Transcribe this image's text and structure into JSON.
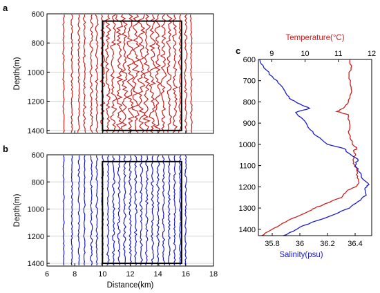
{
  "chart_data": [
    {
      "panel": "a",
      "type": "line",
      "xlabel": "",
      "ylabel": "Depth(m)",
      "xlim": [
        6,
        18
      ],
      "ylim": [
        600,
        1420
      ],
      "y_reversed": true,
      "yticks": [
        600,
        800,
        1000,
        1200,
        1400
      ],
      "xticks": [
        6,
        8,
        10,
        12,
        14,
        16,
        18
      ],
      "show_x_tick_labels": false,
      "grid": "horizontal",
      "trace_color": "#cc1f1f",
      "trace_offsets_km": [
        7.2,
        7.8,
        8.3,
        8.7,
        9.2,
        9.6,
        10.0,
        10.4,
        10.8,
        11.2,
        11.6,
        12.0,
        12.4,
        12.8,
        13.2,
        13.6,
        14.0,
        14.4,
        14.8,
        15.2,
        15.6,
        16.0,
        16.4
      ],
      "trace_amplitude_km": [
        0.05,
        0.06,
        0.07,
        0.08,
        0.09,
        0.1,
        0.14,
        0.17,
        0.19,
        0.2,
        0.21,
        0.22,
        0.22,
        0.22,
        0.21,
        0.2,
        0.19,
        0.18,
        0.16,
        0.14,
        0.1,
        0.08,
        0.06
      ],
      "highlight_box": {
        "x": [
          10.0,
          15.7
        ],
        "y": [
          650,
          1400
        ],
        "color": "#000000"
      }
    },
    {
      "panel": "b",
      "type": "line",
      "xlabel": "Distance(km)",
      "ylabel": "Depth(m)",
      "xlim": [
        6,
        18
      ],
      "ylim": [
        600,
        1420
      ],
      "y_reversed": true,
      "yticks": [
        600,
        800,
        1000,
        1200,
        1400
      ],
      "xticks": [
        6,
        8,
        10,
        12,
        14,
        16,
        18
      ],
      "show_x_tick_labels": true,
      "grid": "horizontal",
      "trace_color": "#1b1bcc",
      "trace_offsets_km": [
        7.2,
        7.8,
        8.3,
        8.7,
        9.2,
        9.6,
        10.0,
        10.4,
        10.8,
        11.2,
        11.6,
        12.0,
        12.4,
        12.8,
        13.2,
        13.6,
        14.0,
        14.4,
        14.8,
        15.2,
        15.6,
        16.0
      ],
      "trace_amplitude_km": [
        0.04,
        0.04,
        0.05,
        0.05,
        0.06,
        0.06,
        0.07,
        0.07,
        0.08,
        0.08,
        0.08,
        0.08,
        0.08,
        0.08,
        0.08,
        0.08,
        0.08,
        0.07,
        0.07,
        0.06,
        0.06,
        0.05
      ],
      "highlight_box": {
        "x": [
          10.0,
          15.7
        ],
        "y": [
          650,
          1400
        ],
        "color": "#000000"
      }
    },
    {
      "panel": "c",
      "type": "line",
      "ylabel": "",
      "ylim": [
        600,
        1430
      ],
      "y_reversed": true,
      "yticks": [
        600,
        700,
        800,
        900,
        1000,
        1100,
        1200,
        1300,
        1400
      ],
      "top_axis": {
        "label": "Temperature(°C)",
        "color": "#cc1f1f",
        "xlim": [
          8.6,
          12
        ],
        "xticks": [
          9,
          10,
          11,
          12
        ]
      },
      "bottom_axis": {
        "label": "Salinity(psu)",
        "color": "#1b1bcc",
        "xlim": [
          35.7,
          36.52
        ],
        "xticks": [
          35.8,
          36,
          36.2,
          36.4
        ]
      },
      "series": [
        {
          "axis": "top",
          "color": "#cc1f1f",
          "depth": [
            600,
            640,
            680,
            720,
            760,
            800,
            830,
            845,
            860,
            900,
            940,
            980,
            1000,
            1020,
            1030,
            1050,
            1080,
            1100,
            1120,
            1150,
            1180,
            1200,
            1220,
            1250,
            1280,
            1300,
            1320,
            1350,
            1380,
            1410,
            1430
          ],
          "values": [
            11.35,
            11.38,
            11.32,
            11.36,
            11.38,
            11.3,
            11.15,
            10.95,
            11.3,
            11.33,
            11.3,
            11.38,
            11.42,
            11.55,
            11.45,
            11.52,
            11.45,
            11.5,
            11.55,
            11.58,
            11.62,
            11.52,
            11.25,
            11.1,
            10.6,
            10.3,
            10.05,
            9.6,
            9.25,
            8.9,
            8.7
          ]
        },
        {
          "axis": "bottom",
          "color": "#1b1bcc",
          "depth": [
            600,
            640,
            680,
            720,
            760,
            790,
            810,
            830,
            850,
            880,
            920,
            960,
            1000,
            1020,
            1040,
            1070,
            1100,
            1130,
            1160,
            1190,
            1210,
            1240,
            1270,
            1300,
            1330,
            1360,
            1390,
            1410,
            1430
          ],
          "values": [
            35.71,
            35.74,
            35.8,
            35.86,
            35.9,
            35.94,
            36.0,
            36.07,
            35.97,
            36.02,
            36.06,
            36.12,
            36.2,
            36.32,
            36.35,
            36.42,
            36.4,
            36.43,
            36.45,
            36.5,
            36.47,
            36.48,
            36.42,
            36.36,
            36.25,
            36.12,
            36.0,
            35.95,
            35.88
          ]
        }
      ]
    }
  ]
}
